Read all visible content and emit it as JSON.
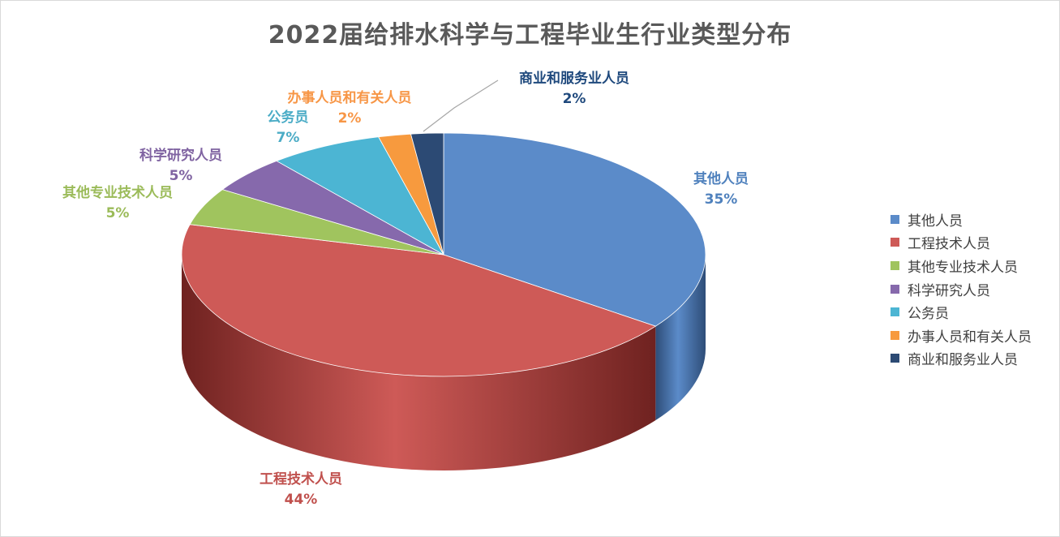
{
  "chart_data": {
    "type": "pie",
    "title": "2022届给排水科学与工程毕业生行业类型分布",
    "slices": [
      {
        "label": "其他人员",
        "value": 35,
        "pct_label": "35%",
        "color": "#5B8BC9",
        "dark": "#2E4D78",
        "label_color": "#4F81BD"
      },
      {
        "label": "工程技术人员",
        "value": 44,
        "pct_label": "44%",
        "color": "#CE5A57",
        "dark": "#6F2220",
        "label_color": "#C0504D"
      },
      {
        "label": "其他专业技术人员",
        "value": 5,
        "pct_label": "5%",
        "color": "#A0C45E",
        "dark": "#5B7430",
        "label_color": "#9BBB59"
      },
      {
        "label": "科学研究人员",
        "value": 5,
        "pct_label": "5%",
        "color": "#8669AC",
        "dark": "#4B3766",
        "label_color": "#8064A2"
      },
      {
        "label": "公务员",
        "value": 7,
        "pct_label": "7%",
        "color": "#4CB5D3",
        "dark": "#2A6E82",
        "label_color": "#4BACC6"
      },
      {
        "label": "办事人员和有关人员",
        "value": 2,
        "pct_label": "2%",
        "color": "#F79A3E",
        "dark": "#9A5A1A",
        "label_color": "#F79646"
      },
      {
        "label": "商业和服务业人员",
        "value": 2,
        "pct_label": "2%",
        "color": "#2C4A74",
        "dark": "#152640",
        "label_color": "#1F497D"
      }
    ],
    "legend_position": "right"
  }
}
